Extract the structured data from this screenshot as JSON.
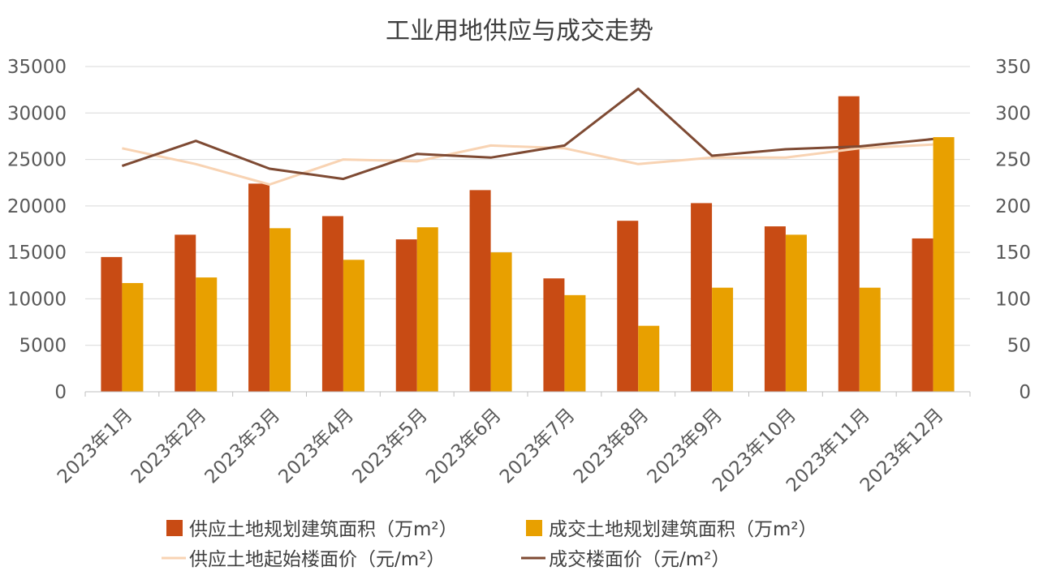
{
  "chart_data": {
    "type": "bar",
    "title": "工业用地供应与成交走势",
    "categories": [
      "2023年1月",
      "2023年2月",
      "2023年3月",
      "2023年4月",
      "2023年5月",
      "2023年6月",
      "2023年7月",
      "2023年8月",
      "2023年9月",
      "2023年10月",
      "2023年11月",
      "2023年12月"
    ],
    "y_left": {
      "ylim": [
        0,
        35000
      ],
      "ticks": [
        0,
        5000,
        10000,
        15000,
        20000,
        25000,
        30000,
        35000
      ]
    },
    "y_right": {
      "ylim": [
        0,
        350
      ],
      "ticks": [
        0,
        50,
        100,
        150,
        200,
        250,
        300,
        350
      ]
    },
    "grid": true,
    "legend_position": "bottom",
    "series": [
      {
        "name": "供应土地规划建筑面积（万m²）",
        "kind": "bar",
        "axis": "left",
        "color": "#c84b14",
        "values": [
          14500,
          16900,
          22400,
          18900,
          16400,
          21700,
          12200,
          18400,
          20300,
          17800,
          31800,
          16500
        ]
      },
      {
        "name": "成交土地规划建筑面积（万m²）",
        "kind": "bar",
        "axis": "left",
        "color": "#e8a000",
        "values": [
          11700,
          12300,
          17600,
          14200,
          17700,
          15000,
          10400,
          7100,
          11200,
          16900,
          11200,
          27400
        ]
      },
      {
        "name": "供应土地起始楼面价（元/m²）",
        "kind": "line",
        "axis": "right",
        "color": "#f8d3b3",
        "values": [
          262,
          245,
          223,
          250,
          248,
          265,
          262,
          245,
          252,
          252,
          262,
          266
        ]
      },
      {
        "name": "成交楼面价（元/m²）",
        "kind": "line",
        "axis": "right",
        "color": "#7e4a33",
        "values": [
          243,
          270,
          240,
          229,
          256,
          252,
          265,
          326,
          254,
          261,
          264,
          272
        ]
      }
    ]
  }
}
